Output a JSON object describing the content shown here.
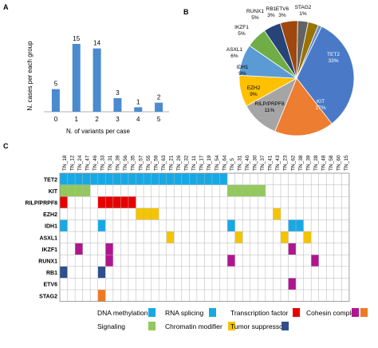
{
  "panel_labels": {
    "a": "A",
    "b": "B",
    "c": "C"
  },
  "colors": {
    "bar": "#4a8bd0",
    "dna_methylation": "#17a9e6",
    "chromatin_modifier": "#93c95a",
    "transcription_factor": "#e60000",
    "tumor_suppressor": "#f5c400",
    "cohesin_complex": "#b0158f",
    "rb1": "#2e4e8c",
    "etv6": "#b0158f",
    "stag2": "#ee7a23"
  },
  "chart_data": [
    {
      "type": "bar",
      "title": "",
      "xlabel": "N. of variants per case",
      "ylabel": "N. cases per each group",
      "categories": [
        "0",
        "1",
        "2",
        "3",
        "4",
        "5"
      ],
      "values": [
        5,
        15,
        14,
        3,
        1,
        2
      ],
      "ylim": [
        0,
        18
      ],
      "grid": false
    },
    {
      "type": "pie",
      "title": "",
      "slices": [
        {
          "label": "TET2",
          "pct": "33%",
          "value": 33,
          "color": "#4a7ac7"
        },
        {
          "label": "KIT",
          "pct": "17%",
          "value": 17,
          "color": "#ed7d31"
        },
        {
          "label": "RILP/PRPF8",
          "pct": "11%",
          "value": 11,
          "color": "#a5a5a5"
        },
        {
          "label": "EZH2",
          "pct": "9%",
          "value": 9,
          "color": "#ffc000"
        },
        {
          "label": "IDH1",
          "pct": "9%",
          "value": 9,
          "color": "#5b9bd5"
        },
        {
          "label": "ASXL1",
          "pct": "6%",
          "value": 6,
          "color": "#70ad47"
        },
        {
          "label": "IKZF1",
          "pct": "5%",
          "value": 5,
          "color": "#264478"
        },
        {
          "label": "RUNX1",
          "pct": "5%",
          "value": 5,
          "color": "#9e480e"
        },
        {
          "label": "RB1",
          "pct": "3%",
          "value": 3,
          "color": "#636363"
        },
        {
          "label": "ETV6",
          "pct": "3%",
          "value": 3,
          "color": "#997300"
        },
        {
          "label": "STAG2",
          "pct": "1%",
          "value": 1,
          "color": "#698ed0"
        }
      ]
    },
    {
      "type": "heatmap",
      "title": "",
      "samples": [
        "TN_18",
        "TN_12",
        "TN_24",
        "TN_47",
        "TN_46",
        "TN_33",
        "TN_31",
        "TN_39",
        "TN_56",
        "TN_35",
        "TN_57",
        "TN_55",
        "TN_59",
        "TN_63",
        "TN_21",
        "TN_26",
        "TN_32",
        "TN_11",
        "TN_17",
        "TN_19",
        "TN_54",
        "TN_64",
        "TN_5",
        "TN_31",
        "TN_40",
        "TN_30",
        "TN_37",
        "TN_41",
        "TN_43",
        "TN_23",
        "TN_62",
        "TN_38",
        "TN_39",
        "TN_28",
        "TN_48",
        "TN_58",
        "TN_60",
        "TN_15"
      ],
      "genes": [
        "TET2",
        "KIT",
        "RILP/PRPF8",
        "EZH2",
        "IDH1",
        "ASXL1",
        "IKZF1",
        "RUNX1",
        "RB1",
        "ETV6",
        "STAG2"
      ],
      "cells": [
        {
          "gene": "TET2",
          "from": 0,
          "to": 21,
          "category": "dna_methylation"
        },
        {
          "gene": "KIT",
          "from": 0,
          "to": 3,
          "category": "chromatin_modifier"
        },
        {
          "gene": "KIT",
          "from": 22,
          "to": 26,
          "category": "chromatin_modifier"
        },
        {
          "gene": "RILP/PRPF8",
          "from": 0,
          "to": 0,
          "category": "transcription_factor"
        },
        {
          "gene": "RILP/PRPF8",
          "from": 5,
          "to": 9,
          "category": "transcription_factor"
        },
        {
          "gene": "EZH2",
          "from": 10,
          "to": 12,
          "category": "tumor_suppressor"
        },
        {
          "gene": "EZH2",
          "from": 28,
          "to": 28,
          "category": "tumor_suppressor"
        },
        {
          "gene": "IDH1",
          "from": 0,
          "to": 0,
          "category": "dna_methylation"
        },
        {
          "gene": "IDH1",
          "from": 5,
          "to": 5,
          "category": "dna_methylation"
        },
        {
          "gene": "IDH1",
          "from": 22,
          "to": 22,
          "category": "dna_methylation"
        },
        {
          "gene": "IDH1",
          "from": 30,
          "to": 31,
          "category": "dna_methylation"
        },
        {
          "gene": "ASXL1",
          "from": 14,
          "to": 14,
          "category": "tumor_suppressor"
        },
        {
          "gene": "ASXL1",
          "from": 23,
          "to": 23,
          "category": "tumor_suppressor"
        },
        {
          "gene": "ASXL1",
          "from": 29,
          "to": 29,
          "category": "tumor_suppressor"
        },
        {
          "gene": "ASXL1",
          "from": 32,
          "to": 32,
          "category": "tumor_suppressor"
        },
        {
          "gene": "IKZF1",
          "from": 2,
          "to": 2,
          "category": "cohesin_complex"
        },
        {
          "gene": "IKZF1",
          "from": 6,
          "to": 6,
          "category": "cohesin_complex"
        },
        {
          "gene": "IKZF1",
          "from": 30,
          "to": 30,
          "category": "cohesin_complex"
        },
        {
          "gene": "RUNX1",
          "from": 6,
          "to": 6,
          "category": "cohesin_complex"
        },
        {
          "gene": "RUNX1",
          "from": 22,
          "to": 22,
          "category": "cohesin_complex"
        },
        {
          "gene": "RUNX1",
          "from": 33,
          "to": 33,
          "category": "cohesin_complex"
        },
        {
          "gene": "RB1",
          "from": 0,
          "to": 0,
          "category": "rb1"
        },
        {
          "gene": "RB1",
          "from": 5,
          "to": 5,
          "category": "rb1"
        },
        {
          "gene": "ETV6",
          "from": 30,
          "to": 30,
          "category": "etv6"
        },
        {
          "gene": "STAG2",
          "from": 5,
          "to": 5,
          "category": "stag2"
        }
      ],
      "legend": [
        {
          "label": "DNA methylation",
          "color": "#17a9e6"
        },
        {
          "label": "RNA splicing",
          "color": "#17a9e6"
        },
        {
          "label": "Transcription factor",
          "color": "#e60000"
        },
        {
          "label": "Cohesin complex",
          "color": "#b0158f"
        },
        {
          "label": "",
          "color": "#ee7a23"
        },
        {
          "label": "Signaling",
          "color": "#93c95a"
        },
        {
          "label": "Chromatin modifier",
          "color": "#f5c400"
        },
        {
          "label": "Tumor suppressor",
          "color": "#2e4e8c"
        }
      ]
    }
  ]
}
